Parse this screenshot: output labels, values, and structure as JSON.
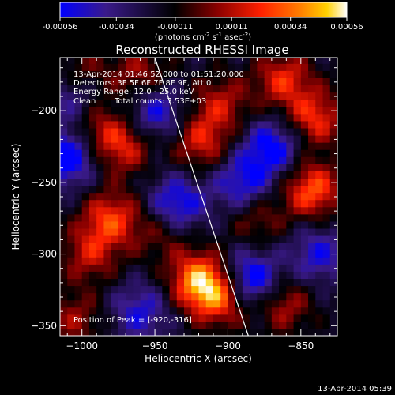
{
  "colorbar": {
    "ticks": [
      "-0.00056",
      "-0.00034",
      "-0.00011",
      "0.00011",
      "0.00034",
      "0.00056"
    ],
    "unit_main": "(photons cm",
    "unit_sup1": "-2",
    "unit_mid": " s",
    "unit_sup2": "-1",
    "unit_end": " asec",
    "unit_sup3": "-2",
    "unit_close": ")",
    "range": [
      -0.00056,
      0.00056
    ],
    "stops": [
      "#0000ff",
      "#3a1a8a",
      "#000000",
      "#8b0000",
      "#ff2000",
      "#ff8000",
      "#ffd000",
      "#ffffff"
    ]
  },
  "chart_data": {
    "type": "heatmap",
    "title": "Reconstructed RHESSI Image",
    "xlabel": "Heliocentric X (arcsec)",
    "ylabel": "Heliocentric Y (arcsec)",
    "xlim": [
      -1015,
      -825
    ],
    "ylim": [
      -357,
      -163
    ],
    "x_ticks": [
      -1000,
      -950,
      -900,
      -850
    ],
    "y_ticks": [
      -350,
      -300,
      -250,
      -200
    ],
    "x_tick_labels": [
      "−1000",
      "−950",
      "−900",
      "−850"
    ],
    "y_tick_labels": [
      "−350",
      "−300",
      "−250",
      "−200"
    ],
    "limb_line": [
      [
        -950,
        -163
      ],
      [
        -886,
        -357
      ]
    ],
    "info": {
      "time": "13-Apr-2014 01:46:52.000 to 01:51:20.000",
      "detectors": "Detectors: 3F 5F 6F 7F 8F 9F, Att 0",
      "energy": "Energy Range: 12.0 - 25.0 keV",
      "method": "Clean",
      "counts": "Total counts: 7.53E+03"
    },
    "peak_label": "Position of Peak = [",
    "peak_value": "-920,-316",
    "peak_close": "]",
    "peak_position": [
      -920,
      -316
    ],
    "sources": [
      {
        "x": -920,
        "y": -318,
        "value": 0.00056
      },
      {
        "x": -905,
        "y": -330,
        "value": 0.00045
      },
      {
        "x": -980,
        "y": -275,
        "value": 0.00042
      },
      {
        "x": -995,
        "y": -300,
        "value": 0.0003
      },
      {
        "x": -972,
        "y": -225,
        "value": 0.00035
      },
      {
        "x": -990,
        "y": -210,
        "value": 0.00025
      },
      {
        "x": -842,
        "y": -255,
        "value": 0.00048
      },
      {
        "x": -840,
        "y": -205,
        "value": 0.0004
      },
      {
        "x": -862,
        "y": -178,
        "value": 0.00038
      },
      {
        "x": -918,
        "y": -222,
        "value": 0.00035
      },
      {
        "x": -905,
        "y": -195,
        "value": 0.0003
      },
      {
        "x": -862,
        "y": -335,
        "value": 0.0003
      },
      {
        "x": -1005,
        "y": -345,
        "value": 0.00025
      },
      {
        "x": -945,
        "y": -285,
        "value": 0.0002
      },
      {
        "x": -960,
        "y": -175,
        "value": 0.00028
      },
      {
        "x": -1000,
        "y": -175,
        "value": 0.00025
      },
      {
        "x": -880,
        "y": -275,
        "value": 0.00022
      },
      {
        "x": -935,
        "y": -265,
        "value": -0.0004
      },
      {
        "x": -885,
        "y": -318,
        "value": -0.0005
      },
      {
        "x": -1010,
        "y": -232,
        "value": -0.00045
      },
      {
        "x": -870,
        "y": -225,
        "value": -0.0004
      },
      {
        "x": -950,
        "y": -200,
        "value": -0.00035
      },
      {
        "x": -890,
        "y": -250,
        "value": -0.00035
      },
      {
        "x": -1005,
        "y": -190,
        "value": -0.0003
      },
      {
        "x": -960,
        "y": -340,
        "value": -0.0003
      },
      {
        "x": -838,
        "y": -300,
        "value": -0.0003
      }
    ]
  },
  "footer": {
    "timestamp": "13-Apr-2014 05:39"
  }
}
